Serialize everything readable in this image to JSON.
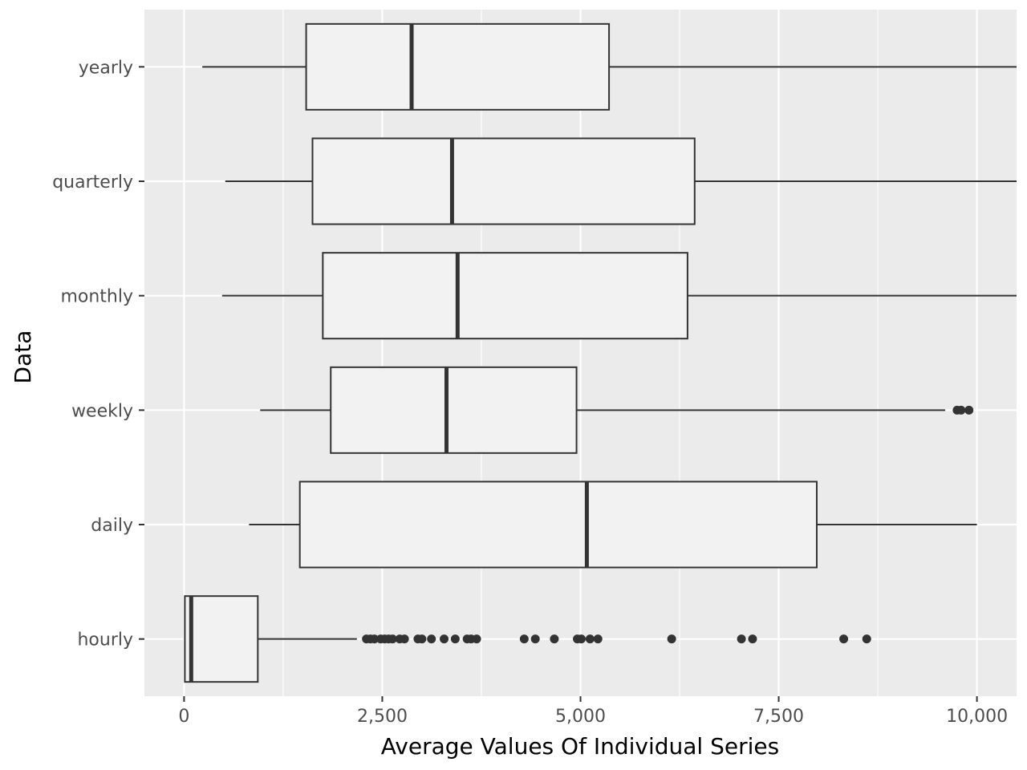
{
  "chart_data": {
    "type": "boxplot",
    "orientation": "horizontal",
    "xlabel": "Average Values Of Individual Series",
    "ylabel": "Data",
    "xlim": [
      -500,
      10500
    ],
    "x_ticks": [
      0,
      2500,
      5000,
      7500,
      10000
    ],
    "x_tick_labels": [
      "0",
      "2,500",
      "5,000",
      "7,500",
      "10,000"
    ],
    "grid": true,
    "colors": {
      "panel": "#ebebeb",
      "grid": "#ffffff",
      "box_fill": "#f2f2f2",
      "box_stroke": "#333333",
      "outlier": "#333333"
    },
    "categories": [
      "yearly",
      "quarterly",
      "monthly",
      "weekly",
      "daily",
      "hourly"
    ],
    "boxes": [
      {
        "category": "yearly",
        "whisker_low": 230,
        "q1": 1540,
        "median": 2870,
        "q3": 5360,
        "whisker_high": 10500,
        "outliers": []
      },
      {
        "category": "quarterly",
        "whisker_low": 520,
        "q1": 1620,
        "median": 3380,
        "q3": 6440,
        "whisker_high": 10500,
        "outliers": []
      },
      {
        "category": "monthly",
        "whisker_low": 480,
        "q1": 1750,
        "median": 3450,
        "q3": 6350,
        "whisker_high": 10500,
        "outliers": []
      },
      {
        "category": "weekly",
        "whisker_low": 960,
        "q1": 1850,
        "median": 3310,
        "q3": 4950,
        "whisker_high": 9600,
        "outliers": [
          9750,
          9800,
          9900
        ]
      },
      {
        "category": "daily",
        "whisker_low": 820,
        "q1": 1460,
        "median": 5080,
        "q3": 7980,
        "whisker_high": 10000,
        "outliers": []
      },
      {
        "category": "hourly",
        "whisker_low": 5,
        "q1": 10,
        "median": 90,
        "q3": 930,
        "whisker_high": 2180,
        "outliers": [
          2300,
          2350,
          2400,
          2480,
          2530,
          2580,
          2630,
          2720,
          2780,
          2950,
          3000,
          3120,
          3280,
          3420,
          3570,
          3620,
          3690,
          4290,
          4430,
          4670,
          4960,
          5010,
          5120,
          5220,
          6150,
          7030,
          7170,
          8320,
          8610
        ]
      }
    ]
  }
}
